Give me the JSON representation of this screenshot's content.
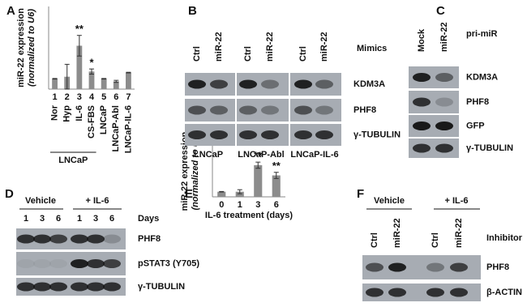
{
  "chart_data": [
    {
      "type": "bar",
      "panel": "A",
      "ylabel": "miR-22 expression",
      "ylabel_note": "(normalized to U6)",
      "categories": [
        "Nor",
        "Hyp",
        "IL-6",
        "CS-FBS",
        "LNCaP",
        "LNCaP-Abl",
        "LNCaP-IL-6"
      ],
      "category_numbers": [
        "1",
        "2",
        "3",
        "4",
        "5",
        "6",
        "7"
      ],
      "values": [
        1,
        1.2,
        4.2,
        1.7,
        1,
        0.75,
        1.6
      ],
      "errors": [
        0.03,
        1.2,
        1,
        0.25,
        0.03,
        0.1,
        0.03
      ],
      "annotations": [
        {
          "category": "IL-6",
          "text": "**"
        },
        {
          "category": "CS-FBS",
          "text": "*"
        }
      ],
      "group_label": "LNCaP",
      "color": "#8c8c8c",
      "ylim": [
        0,
        8
      ]
    },
    {
      "type": "bar",
      "panel": "E",
      "ylabel": "miR-22 expression",
      "ylabel_note": "(normalized to U6)",
      "xlabel": "IL-6 treatment (days)",
      "categories": [
        "0",
        "1",
        "3",
        "6"
      ],
      "values": [
        1,
        1,
        6.2,
        4.2
      ],
      "errors": [
        0.05,
        0.4,
        0.6,
        0.6
      ],
      "annotations": [
        {
          "category": "3",
          "text": "**"
        },
        {
          "category": "6",
          "text": "**"
        }
      ],
      "color": "#8c8c8c",
      "ylim": [
        0,
        10
      ]
    }
  ],
  "blots": [
    {
      "panel": "B",
      "lanes": [
        "Ctrl",
        "miR-22",
        "Ctrl",
        "miR-22",
        "Ctrl",
        "miR-22"
      ],
      "lane_title": "Mimics",
      "rows": [
        "KDM3A",
        "PHF8",
        "γ-TUBULIN"
      ],
      "groups": [
        "LNCaP",
        "LNCaP-Abl",
        "LNCaP-IL-6"
      ]
    },
    {
      "panel": "C",
      "lanes": [
        "Mock",
        "miR-22"
      ],
      "lane_title": "pri-miR",
      "rows": [
        "KDM3A",
        "PHF8",
        "GFP",
        "γ-TUBULIN"
      ]
    },
    {
      "panel": "D",
      "groups": [
        "Vehicle",
        "+ IL-6"
      ],
      "lanes": [
        "1",
        "3",
        "6",
        "1",
        "3",
        "6"
      ],
      "lane_title": "Days",
      "rows": [
        "PHF8",
        "pSTAT3 (Y705)",
        "γ-TUBULIN"
      ]
    },
    {
      "panel": "F",
      "groups": [
        "Vehicle",
        "+ IL-6"
      ],
      "lanes": [
        "Ctrl",
        "miR-22",
        "Ctrl",
        "miR-22"
      ],
      "lane_title": "Inhibitor",
      "rows": [
        "PHF8",
        "β-ACTIN"
      ]
    }
  ]
}
